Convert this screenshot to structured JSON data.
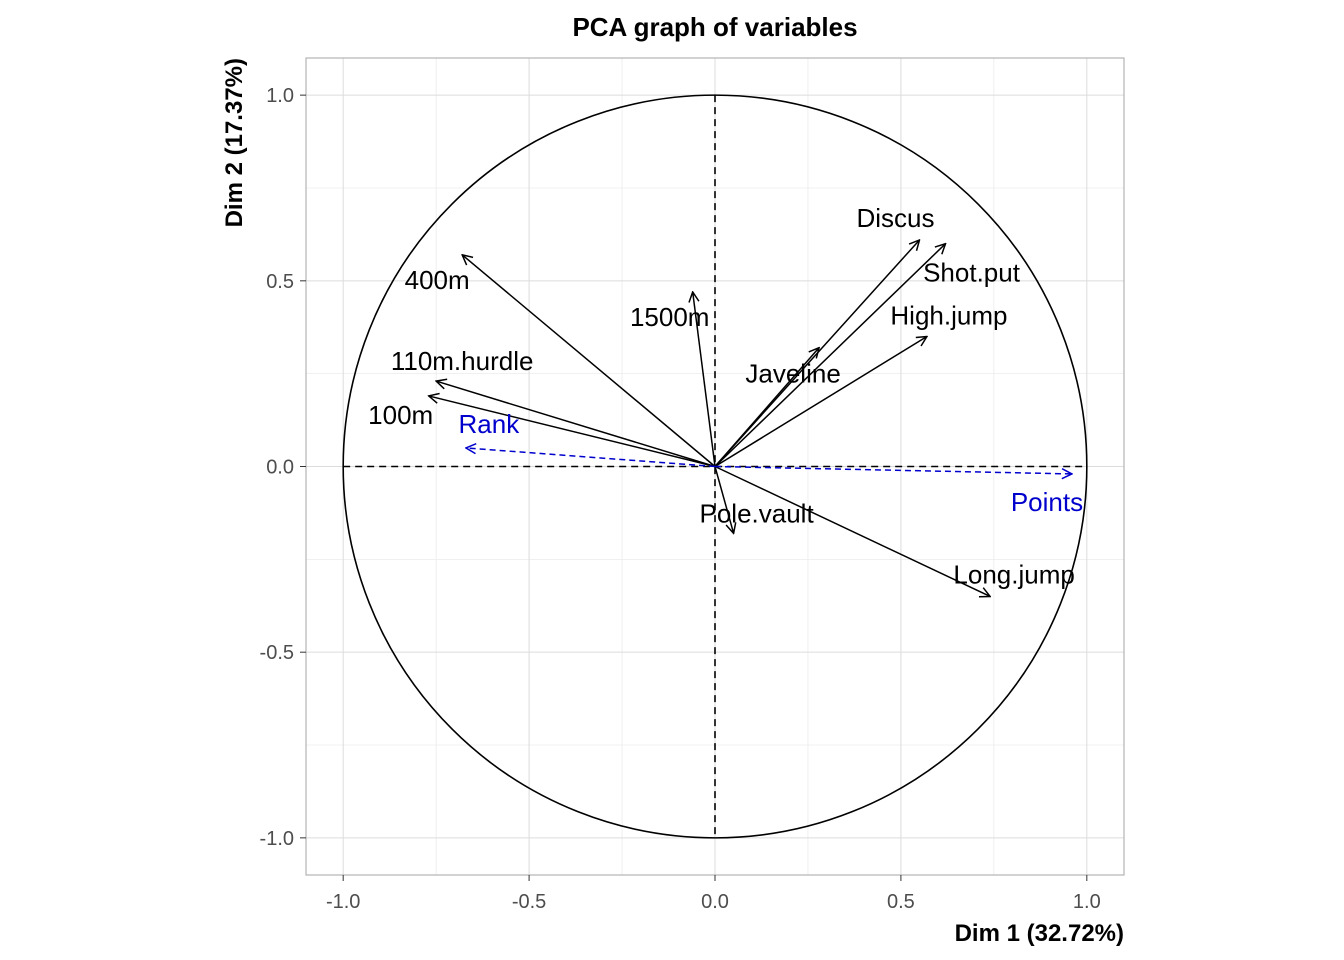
{
  "chart_data": {
    "type": "scatter",
    "title": "PCA graph of variables",
    "xlabel": "Dim 1 (32.72%)",
    "ylabel": "Dim 2 (17.37%)",
    "xlim": [
      -1.1,
      1.1
    ],
    "ylim": [
      -1.1,
      1.1
    ],
    "xticks": [
      -1.0,
      -0.5,
      0.0,
      0.5,
      1.0
    ],
    "yticks": [
      -1.0,
      -0.5,
      0.0,
      0.5,
      1.0
    ],
    "xtick_labels": [
      "-1.0",
      "-0.5",
      "0.0",
      "0.5",
      "1.0"
    ],
    "ytick_labels": [
      "-1.0",
      "-0.5",
      "0.0",
      "0.5",
      "1.0"
    ],
    "grid": true,
    "correlation_circle": true,
    "active_color": "#000000",
    "supplementary_color": "#0000CD",
    "variables": [
      {
        "name": "100m",
        "x": -0.77,
        "y": 0.19,
        "supplementary": false
      },
      {
        "name": "Long.jump",
        "x": 0.74,
        "y": -0.35,
        "supplementary": false
      },
      {
        "name": "Shot.put",
        "x": 0.62,
        "y": 0.6,
        "supplementary": false
      },
      {
        "name": "High.jump",
        "x": 0.57,
        "y": 0.35,
        "supplementary": false
      },
      {
        "name": "400m",
        "x": -0.68,
        "y": 0.57,
        "supplementary": false
      },
      {
        "name": "110m.hurdle",
        "x": -0.75,
        "y": 0.23,
        "supplementary": false
      },
      {
        "name": "Discus",
        "x": 0.55,
        "y": 0.61,
        "supplementary": false
      },
      {
        "name": "Pole.vault",
        "x": 0.05,
        "y": -0.18,
        "supplementary": false
      },
      {
        "name": "Javeline",
        "x": 0.28,
        "y": 0.32,
        "supplementary": false
      },
      {
        "name": "1500m",
        "x": -0.06,
        "y": 0.47,
        "supplementary": false
      },
      {
        "name": "Rank",
        "x": -0.67,
        "y": 0.05,
        "supplementary": true
      },
      {
        "name": "Points",
        "x": 0.96,
        "y": -0.02,
        "supplementary": true
      }
    ]
  }
}
